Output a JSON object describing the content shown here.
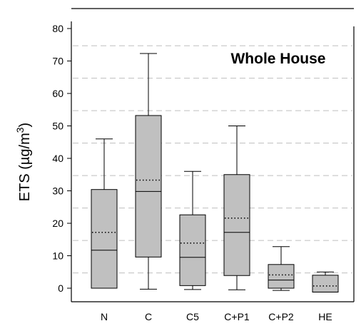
{
  "chart_data": {
    "type": "box",
    "title": "Whole House",
    "ylabel": "ETS (µg/m³)",
    "ylabel_main": "ETS (µg/m",
    "ylabel_sup": "3",
    "ylabel_end": ")",
    "xlabel": "",
    "ylim": [
      -5,
      80
    ],
    "yticks": [
      0,
      10,
      20,
      30,
      40,
      50,
      60,
      70,
      80
    ],
    "grid": "dashed horizontal",
    "categories": [
      "N",
      "C",
      "C5",
      "C+P1",
      "C+P2",
      "HE"
    ],
    "boxes": [
      {
        "name": "N",
        "whisker_low": 0,
        "q1": 0,
        "median": 11.7,
        "mean": 17.2,
        "q3": 30.4,
        "whisker_high": 46
      },
      {
        "name": "C",
        "whisker_low": -0.3,
        "q1": 9.6,
        "median": 29.8,
        "mean": 33.3,
        "q3": 53.2,
        "whisker_high": 72.3
      },
      {
        "name": "C5",
        "whisker_low": -0.4,
        "q1": 0.8,
        "median": 9.5,
        "mean": 13.9,
        "q3": 22.6,
        "whisker_high": 36
      },
      {
        "name": "C+P1",
        "whisker_low": -0.5,
        "q1": 3.9,
        "median": 17.2,
        "mean": 21.6,
        "q3": 35,
        "whisker_high": 50
      },
      {
        "name": "C+P2",
        "whisker_low": -0.7,
        "q1": 0,
        "median": 2.5,
        "mean": 4.1,
        "q3": 7.3,
        "whisker_high": 12.8
      },
      {
        "name": "HE",
        "whisker_low": -1.2,
        "q1": -1.2,
        "median": -1.2,
        "mean": 0.7,
        "q3": 4,
        "whisker_high": 5
      }
    ],
    "colors": {
      "box_fill": "#c0c0c0",
      "stroke": "#000000",
      "grid": "#bfbfbf"
    }
  }
}
